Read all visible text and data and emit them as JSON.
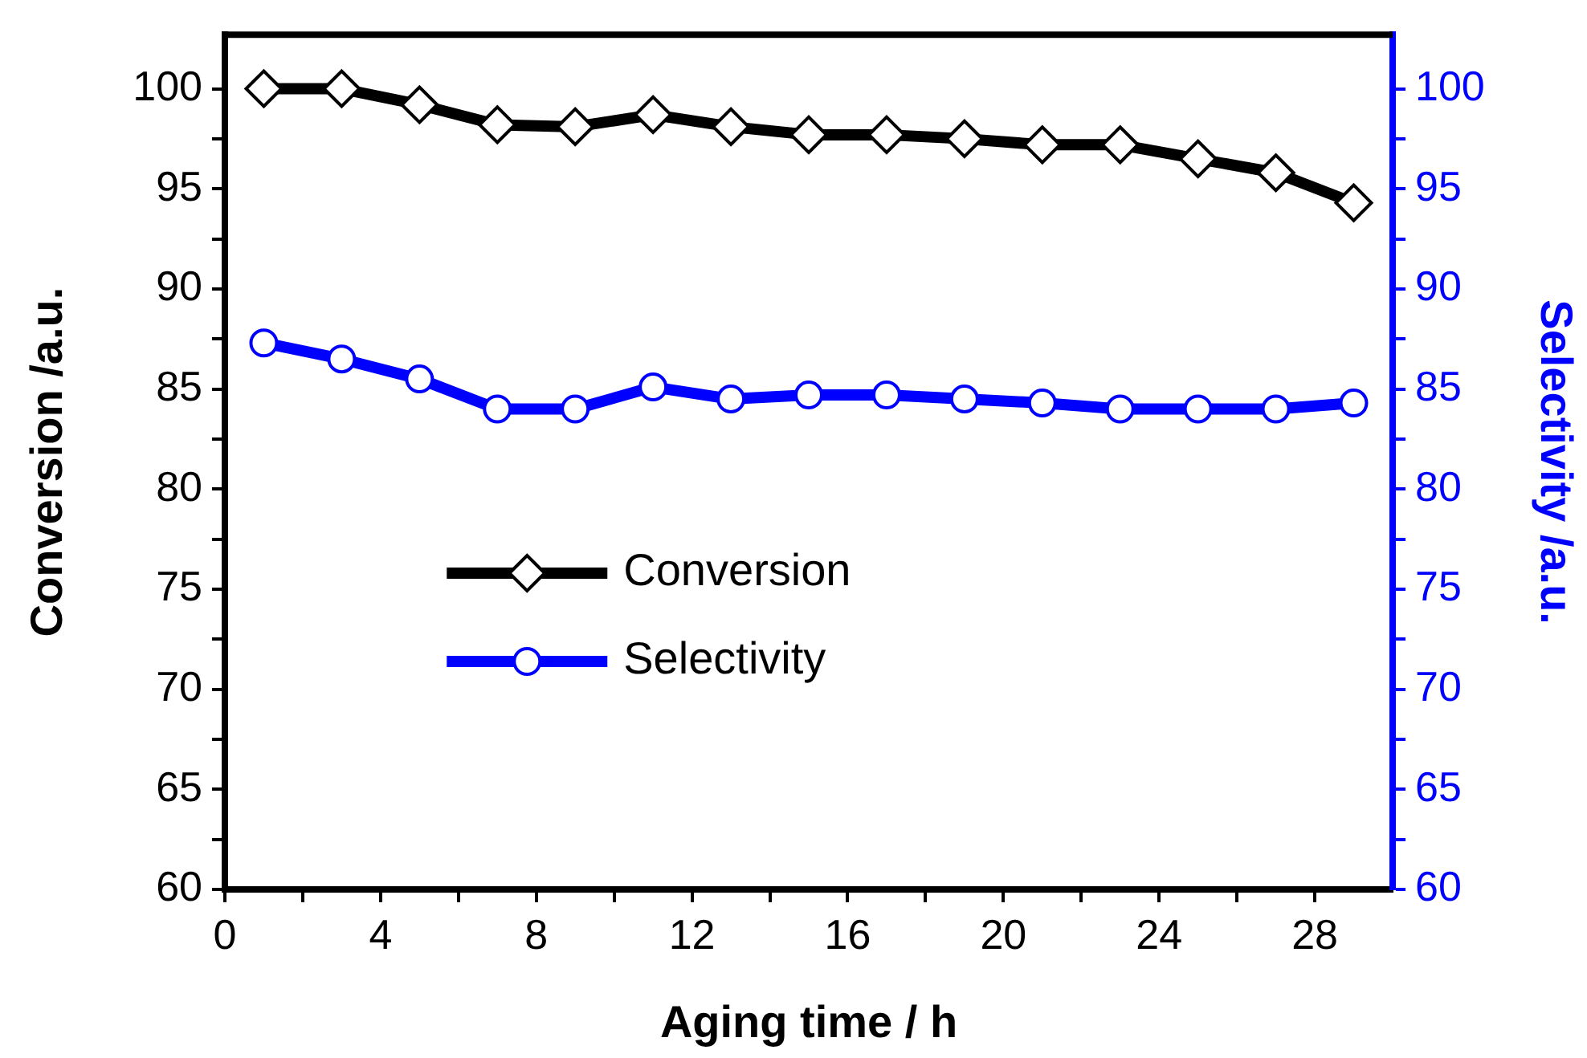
{
  "chart_data": {
    "type": "line",
    "xlabel": "Aging time / h",
    "ylabel": "Conversion /a.u.",
    "y2label": "Selectivity /a.u.",
    "x": [
      1,
      3,
      5,
      7,
      9,
      11,
      13,
      15,
      17,
      19,
      21,
      23,
      25,
      27,
      29
    ],
    "xlim": [
      0,
      30
    ],
    "xticks": [
      0,
      {
        "value": 2,
        "label": null
      },
      4,
      {
        "value": 6,
        "label": null
      },
      8,
      {
        "value": 10,
        "label": null
      },
      12,
      {
        "value": 14,
        "label": null
      },
      16,
      {
        "value": 18,
        "label": null
      },
      20,
      {
        "value": 22,
        "label": null
      },
      24,
      {
        "value": 26,
        "label": null
      },
      28
    ],
    "ylim": [
      60,
      102.7
    ],
    "yticks": [
      60,
      {
        "value": 62.5,
        "label": null
      },
      65,
      {
        "value": 67.5,
        "label": null
      },
      70,
      {
        "value": 72.5,
        "label": null
      },
      75,
      {
        "value": 77.5,
        "label": null
      },
      80,
      {
        "value": 82.5,
        "label": null
      },
      85,
      {
        "value": 87.5,
        "label": null
      },
      90,
      {
        "value": 92.5,
        "label": null
      },
      95,
      {
        "value": 97.5,
        "label": null
      },
      100
    ],
    "y2lim": [
      60,
      102.7
    ],
    "y2ticks": [
      60,
      {
        "value": 62.5,
        "label": null
      },
      65,
      {
        "value": 67.5,
        "label": null
      },
      70,
      {
        "value": 72.5,
        "label": null
      },
      75,
      {
        "value": 77.5,
        "label": null
      },
      80,
      {
        "value": 82.5,
        "label": null
      },
      85,
      {
        "value": 87.5,
        "label": null
      },
      90,
      {
        "value": 92.5,
        "label": null
      },
      95,
      {
        "value": 97.5,
        "label": null
      },
      100
    ],
    "legend": "center left",
    "grid": false,
    "series": [
      {
        "name": "Conversion",
        "color": "#000000",
        "marker": "diamond",
        "values": [
          100,
          100,
          99.2,
          98.2,
          98.1,
          98.7,
          98.1,
          97.7,
          97.7,
          97.5,
          97.2,
          97.2,
          96.5,
          95.8,
          94.3
        ]
      },
      {
        "name": "Selectivity",
        "color": "#0000ff",
        "marker": "circle",
        "axis": "y2",
        "values": [
          87.3,
          86.5,
          85.5,
          84.0,
          84.0,
          85.1,
          84.5,
          84.7,
          84.7,
          84.5,
          84.3,
          84.0,
          84.0,
          84.0,
          84.3
        ]
      }
    ]
  }
}
